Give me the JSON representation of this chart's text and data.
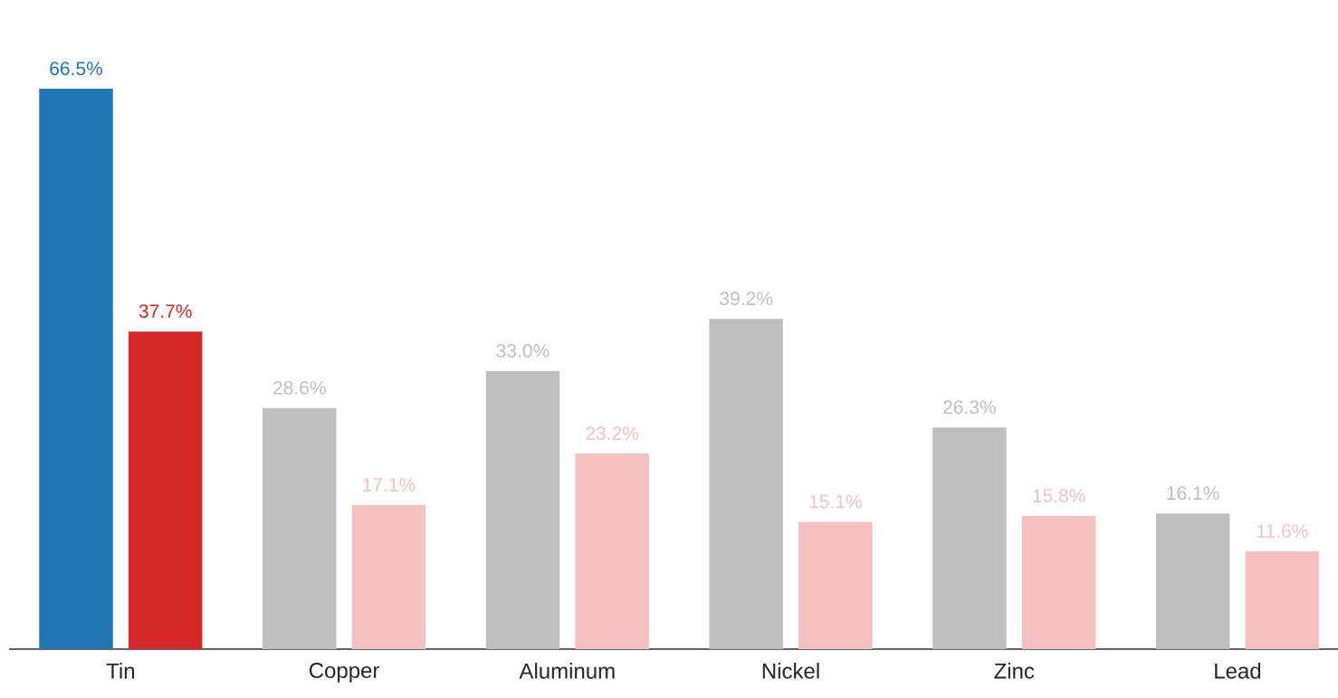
{
  "chart_data": {
    "type": "bar",
    "categories": [
      "Tin",
      "Copper",
      "Aluminum",
      "Nickel",
      "Zinc",
      "Lead"
    ],
    "series": [
      {
        "colors": [
          "#2175b5",
          "#bfbfbf",
          "#bfbfbf",
          "#bfbfbf",
          "#bfbfbf",
          "#bfbfbf"
        ],
        "values": [
          66.5,
          28.6,
          33.0,
          39.2,
          26.3,
          16.1
        ],
        "value_labels": [
          "66.5%",
          "28.6%",
          "33.0%",
          "39.2%",
          "26.3%",
          "16.1%"
        ]
      },
      {
        "colors": [
          "#d42828",
          "#f4c0c0",
          "#f4c0c0",
          "#f4c0c0",
          "#f4c0c0",
          "#f4c0c0"
        ],
        "values": [
          37.7,
          17.1,
          23.2,
          15.1,
          15.8,
          11.6
        ],
        "value_labels": [
          "37.7%",
          "17.1%",
          "23.2%",
          "15.1%",
          "15.8%",
          "11.6%"
        ]
      }
    ]
  }
}
